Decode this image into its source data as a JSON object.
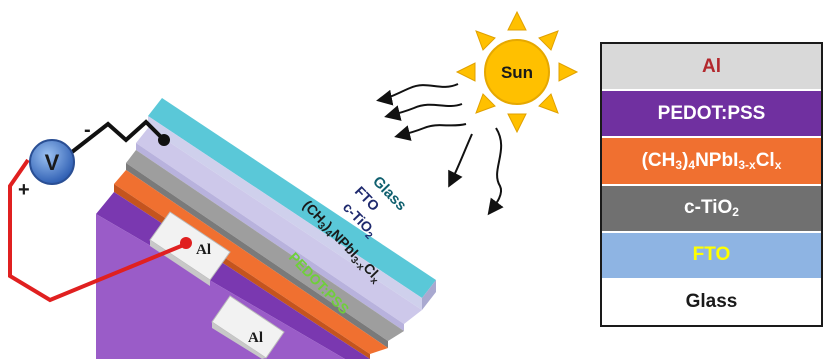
{
  "device_labels": {
    "glass": "Glass",
    "fto": "FTO",
    "ctio2_main": "c-TiO",
    "ctio2_sub": "2",
    "perov_a": "(CH",
    "perov_sub1": "3",
    "perov_b": ")",
    "perov_sub2": "4",
    "perov_c": "NPbI",
    "perov_sub3": "3-x",
    "perov_d": "Cl",
    "perov_sub4": "x",
    "pedot": "PEDOT:PSS",
    "al_top": "Al",
    "al_bottom": "Al"
  },
  "sun_label": "Sun",
  "voltmeter": {
    "symbol": "V",
    "plus": "+",
    "minus": "-"
  },
  "stack": [
    {
      "key": "al",
      "label": "Al",
      "bg": "#d9d9d9",
      "fg": "#b3282d"
    },
    {
      "key": "pedot",
      "label": "PEDOT:PSS",
      "bg": "#7030a0",
      "fg": "#ffffff"
    },
    {
      "key": "perov",
      "parts": [
        "(CH",
        "3",
        ")",
        "4",
        "NPbI",
        "3-x",
        "Cl",
        "x"
      ],
      "bg": "#f07030",
      "fg": "#ffffff"
    },
    {
      "key": "tio2",
      "parts": [
        "c-TiO",
        "2"
      ],
      "bg": "#707070",
      "fg": "#ffffff"
    },
    {
      "key": "fto",
      "label": "FTO",
      "bg": "#8eb4e3",
      "fg": "#ffff00"
    },
    {
      "key": "glass",
      "label": "Glass",
      "bg": "#ffffff",
      "fg": "#1a1a1a"
    }
  ],
  "colors": {
    "glass": "#5ac8d8",
    "fto": "#c9c5e8",
    "tio2": "#9e9e9e",
    "perovskite": "#f07030",
    "pedot": "#7030a0",
    "wire_red": "#e02020",
    "sun": "#ffc000",
    "voltmeter": "#3b6fc6"
  }
}
